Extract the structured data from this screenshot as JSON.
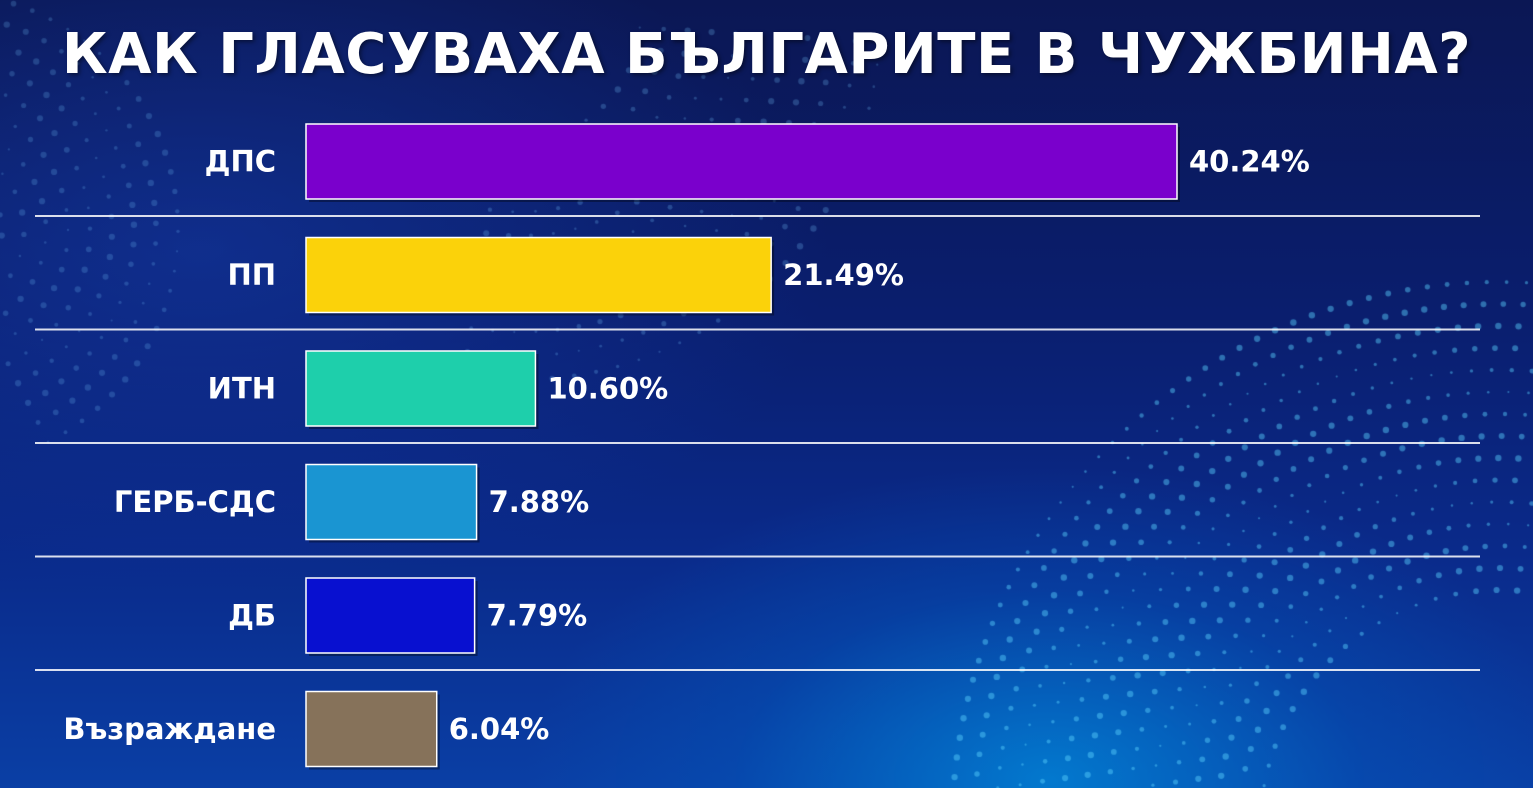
{
  "header": {
    "title": "КАК ГЛАСУВАХА БЪЛГАРИТЕ В ЧУЖБИНА?"
  },
  "chart_data": {
    "type": "bar",
    "orientation": "horizontal",
    "title": "КАК ГЛАСУВАХА БЪЛГАРИТЕ В ЧУЖБИНА?",
    "categories": [
      "ДПС",
      "ПП",
      "ИТН",
      "ГЕРБ-СДС",
      "ДБ",
      "Възраждане"
    ],
    "values": [
      40.24,
      21.49,
      10.6,
      7.88,
      7.79,
      6.04
    ],
    "value_labels": [
      "40.24%",
      "21.49%",
      "10.60%",
      "7.88%",
      "7.79%",
      "6.04%"
    ],
    "colors": [
      "#7a00cc",
      "#fbd20a",
      "#1ecfab",
      "#1a95d2",
      "#0810d0",
      "#86725a"
    ],
    "xlabel": "",
    "ylabel": "",
    "grid": false,
    "legend": "none"
  }
}
